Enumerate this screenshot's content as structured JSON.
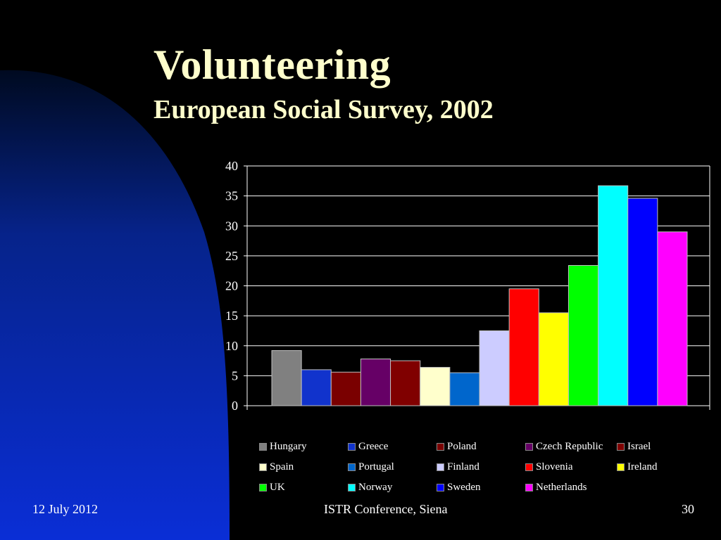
{
  "slide": {
    "title": "Volunteering",
    "subtitle": "European Social Survey, 2002",
    "footer_left": "12 July 2012",
    "footer_center": "ISTR Conference, Siena",
    "footer_right": "30",
    "colors": {
      "background": "#000000",
      "title": "#ffffcc",
      "accent_arc": "#0a2bd0"
    }
  },
  "chart_data": {
    "type": "bar",
    "title": "",
    "xlabel": "",
    "ylabel": "",
    "ylim": [
      0,
      40
    ],
    "yticks": [
      0,
      5,
      10,
      15,
      20,
      25,
      30,
      35,
      40
    ],
    "grid": true,
    "legend_position": "bottom",
    "series": [
      {
        "name": "Hungary",
        "values": [
          9.2
        ],
        "color": "#808080"
      },
      {
        "name": "Greece",
        "values": [
          6.0
        ],
        "color": "#1133cc"
      },
      {
        "name": "Poland",
        "values": [
          5.6
        ],
        "color": "#7a0000"
      },
      {
        "name": "Czech Republic",
        "values": [
          7.8
        ],
        "color": "#660066"
      },
      {
        "name": "Israel",
        "values": [
          7.5
        ],
        "color": "#800000"
      },
      {
        "name": "Spain",
        "values": [
          6.4
        ],
        "color": "#ffffcc"
      },
      {
        "name": "Portugal",
        "values": [
          5.5
        ],
        "color": "#0066cc"
      },
      {
        "name": "Finland",
        "values": [
          12.5
        ],
        "color": "#ccccff"
      },
      {
        "name": "Slovenia",
        "values": [
          19.5
        ],
        "color": "#ff0000"
      },
      {
        "name": "Ireland",
        "values": [
          15.5
        ],
        "color": "#ffff00"
      },
      {
        "name": "UK",
        "values": [
          23.4
        ],
        "color": "#00ff00"
      },
      {
        "name": "Norway",
        "values": [
          36.7
        ],
        "color": "#00ffff"
      },
      {
        "name": "Sweden",
        "values": [
          34.6
        ],
        "color": "#0000ff"
      },
      {
        "name": "Netherlands",
        "values": [
          29.0
        ],
        "color": "#ff00ff"
      }
    ]
  }
}
